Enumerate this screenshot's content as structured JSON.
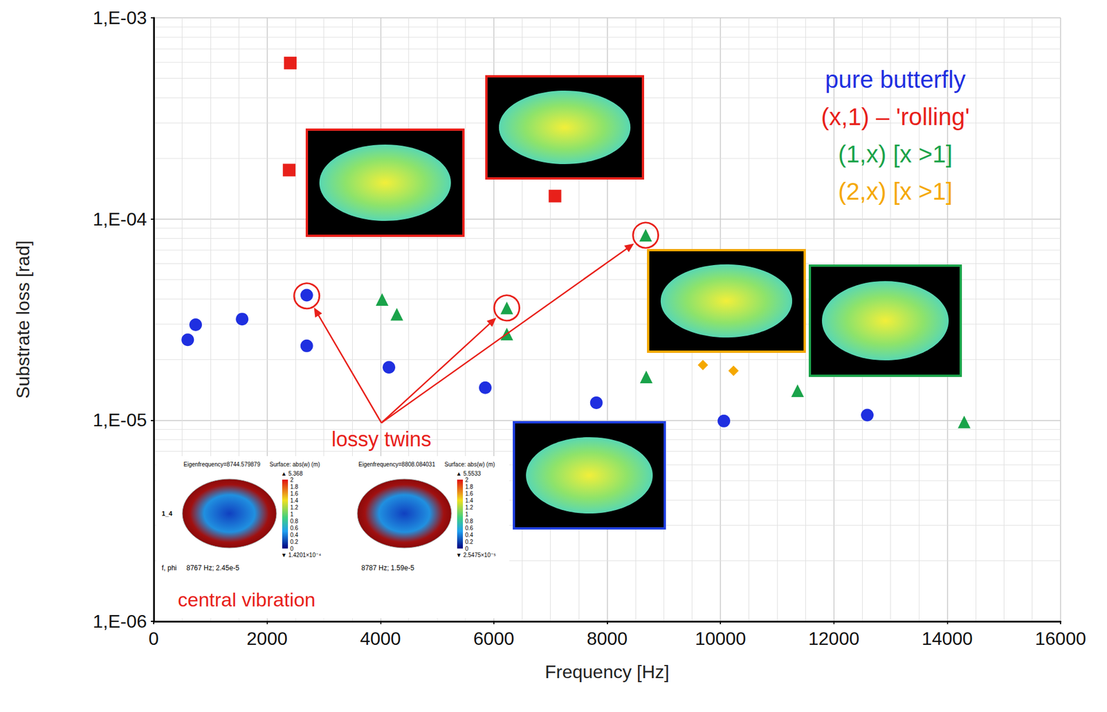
{
  "chart_data": {
    "type": "scatter",
    "x_label": "Frequency [Hz]",
    "y_label": "Substrate loss [rad]",
    "xlim": [
      0,
      16000
    ],
    "xticks": [
      0,
      2000,
      4000,
      6000,
      8000,
      10000,
      12000,
      14000,
      16000
    ],
    "ylim": [
      1e-06,
      0.001
    ],
    "yticks": [
      {
        "value": 1e-06,
        "label": "1,E-06"
      },
      {
        "value": 1e-05,
        "label": "1,E-05"
      },
      {
        "value": 0.0001,
        "label": "1,E-04"
      },
      {
        "value": 0.001,
        "label": "1,E-03"
      }
    ],
    "log": "y",
    "grid": true,
    "legend": "top-right",
    "series": [
      {
        "name": "pure butterfly",
        "color": "#1f2fe0",
        "marker": "circle",
        "x": [
          600,
          740,
          1560,
          2700,
          2700,
          4150,
          5850,
          7810,
          10060,
          12590
        ],
        "values": [
          2.51e-05,
          2.98e-05,
          3.18e-05,
          4.18e-05,
          2.34e-05,
          1.83e-05,
          1.45e-05,
          1.22e-05,
          9.9e-06,
          1.06e-05
        ]
      },
      {
        "name": "(x,1) – 'rolling'",
        "color": "#e8201a",
        "marker": "square",
        "x": [
          2410,
          2390,
          7080
        ],
        "values": [
          0.000596,
          0.000175,
          0.00013
        ]
      },
      {
        "name": "(1,x) [x >1]",
        "color": "#1aa34a",
        "marker": "triangle",
        "x": [
          4030,
          4290,
          6230,
          6230,
          8680,
          8690,
          11360,
          14300
        ],
        "values": [
          3.98e-05,
          3.36e-05,
          3.61e-05,
          2.68e-05,
          8.3e-05,
          1.64e-05,
          1.4e-05,
          9.8e-06
        ]
      },
      {
        "name": "(2,x) [x >1]",
        "color": "#f5a800",
        "marker": "diamond",
        "x": [
          9690,
          10230
        ],
        "values": [
          1.88e-05,
          1.76e-05
        ]
      }
    ],
    "annotations": {
      "highlight": {
        "text": "lossy twins",
        "color": "#e8201a",
        "points": [
          [
            2700,
            4.18e-05
          ],
          [
            6230,
            3.61e-05
          ],
          [
            8680,
            8.3e-05
          ]
        ]
      },
      "caption": {
        "text": "central vibration",
        "color": "#e8201a"
      },
      "insets": [
        {
          "row_label": "1_4",
          "header": "Eigenfrequency=8744.579879",
          "surface": "Surface: abs(w) (m)",
          "max_label": "▲ 5.368",
          "min_label": "▼ 1.4201×10⁻⁴",
          "colorbar_ticks": [
            0,
            0.2,
            0.4,
            0.6,
            0.8,
            1,
            1.2,
            1.4,
            1.6,
            1.8,
            2
          ],
          "value_label": "f, phi",
          "value": "8767 Hz; 2.45e-5"
        },
        {
          "header": "Eigenfrequency=8808.084031",
          "surface": "Surface: abs(w) (m)",
          "max_label": "▲ 5.5533",
          "min_label": "▼ 2.5475×10⁻⁵",
          "colorbar_ticks": [
            0,
            0.2,
            0.4,
            0.6,
            0.8,
            1,
            1.2,
            1.4,
            1.6,
            1.8,
            2
          ],
          "value": "8787 Hz; 1.59e-5"
        }
      ]
    }
  }
}
